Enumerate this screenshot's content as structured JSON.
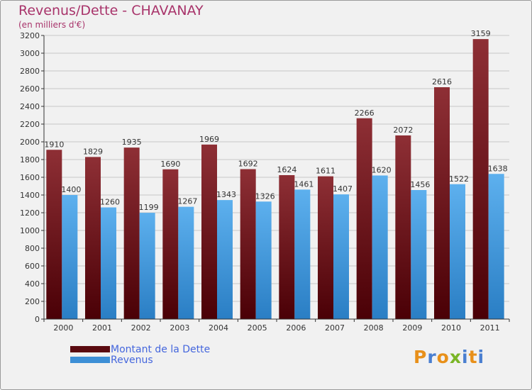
{
  "header": {
    "title": "Revenus/Dette - CHAVANAY",
    "subtitle": "(en milliers d'€)"
  },
  "legend": {
    "debt_label": "Montant de la Dette",
    "revenue_label": "Revenus"
  },
  "logo": {
    "text": "Proxiti",
    "letters": [
      "P",
      "r",
      "o",
      "x",
      "i",
      "t",
      "i"
    ],
    "colors": [
      "#e8901a",
      "#4a7fd0",
      "#e8901a",
      "#7ab526",
      "#4a7fd0",
      "#e8901a",
      "#4a7fd0"
    ]
  },
  "colors": {
    "debt": "#7a1e24",
    "revenue": "#4a9ee0",
    "grid": "#c8c8c8",
    "title": "#a8336a",
    "label": "#333333"
  },
  "chart_data": {
    "type": "bar",
    "title": "Revenus/Dette - CHAVANAY",
    "ylabel": "(en milliers d'€)",
    "xlabel": "",
    "categories": [
      "2000",
      "2001",
      "2002",
      "2003",
      "2004",
      "2005",
      "2006",
      "2007",
      "2008",
      "2009",
      "2010",
      "2011"
    ],
    "series": [
      {
        "name": "Montant de la Dette",
        "values": [
          1910,
          1829,
          1935,
          1690,
          1969,
          1692,
          1624,
          1611,
          2266,
          2072,
          2616,
          3159
        ]
      },
      {
        "name": "Revenus",
        "values": [
          1400,
          1260,
          1199,
          1267,
          1343,
          1326,
          1461,
          1407,
          1620,
          1456,
          1522,
          1638
        ]
      }
    ],
    "ylim": [
      0,
      3200
    ],
    "ytick_step": 200,
    "grid": true,
    "legend_position": "bottom-left"
  }
}
